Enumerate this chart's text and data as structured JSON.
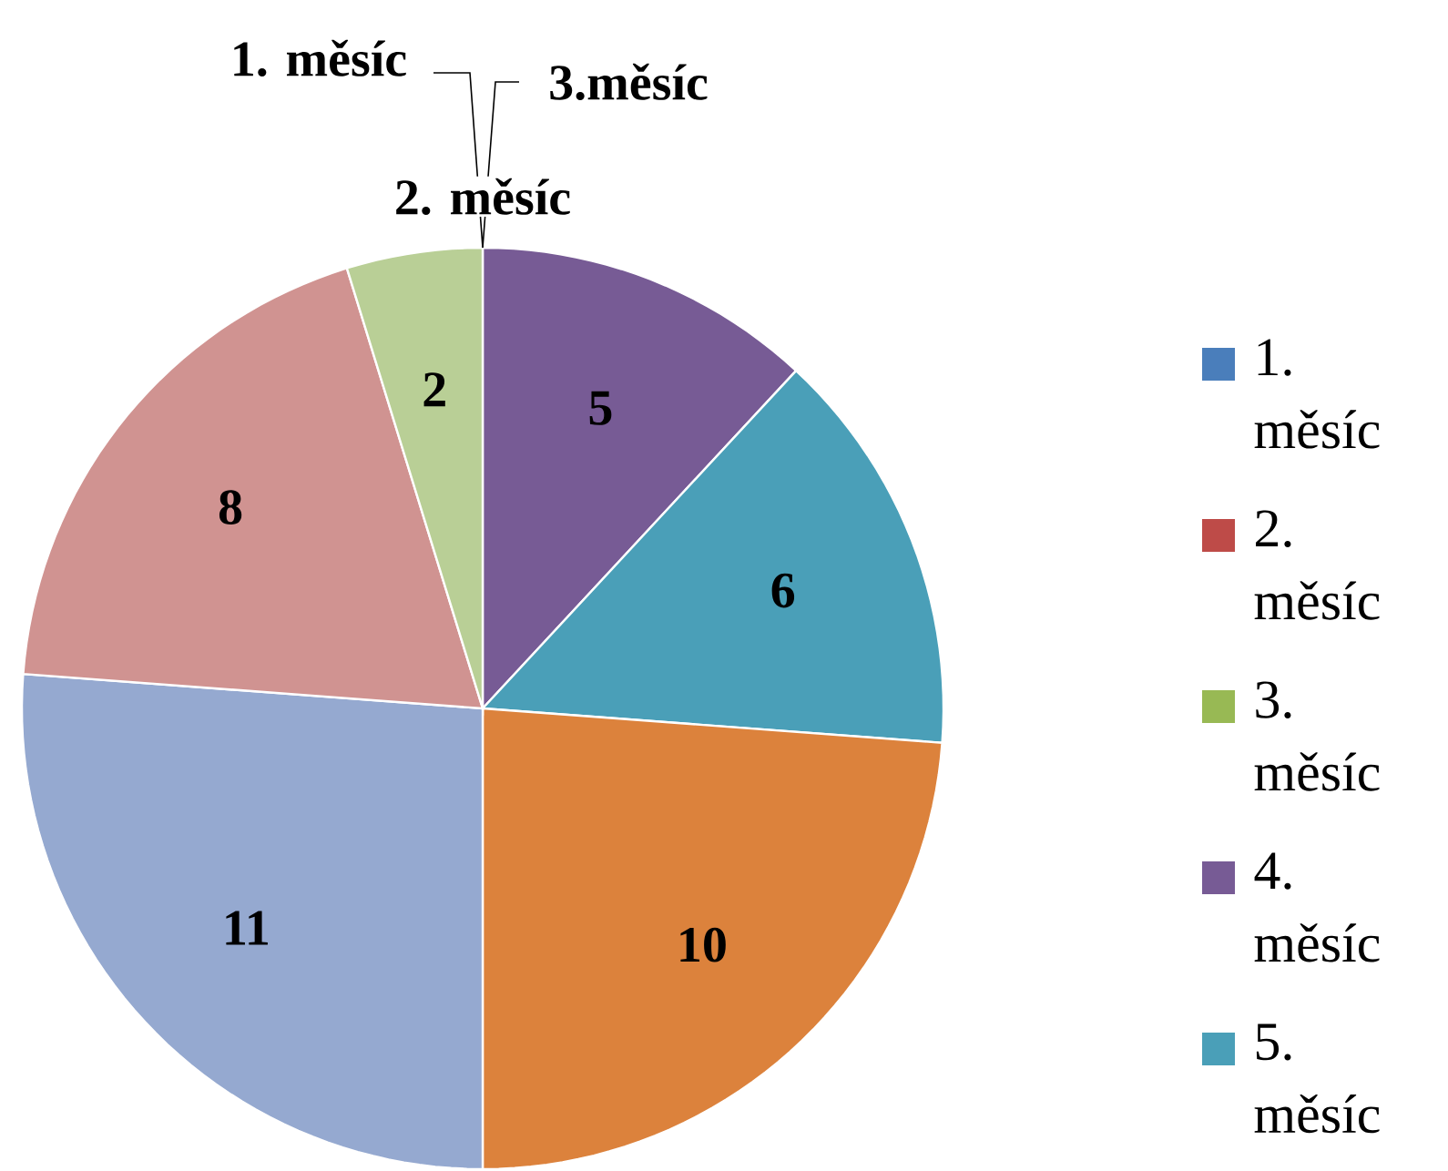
{
  "chart_data": {
    "type": "pie",
    "categories": [
      "1. měsíc",
      "2. měsíc",
      "3. měsíc",
      "4. měsíc",
      "5. měsíc",
      null,
      null,
      null,
      null
    ],
    "values": [
      0,
      0,
      0,
      5,
      6,
      10,
      11,
      8,
      2
    ],
    "colors": [
      "#4a7ebb",
      "#be4b48",
      "#98b954",
      "#775b95",
      "#4a9fb8",
      "#dc823c",
      "#95a9d0",
      "#d09391",
      "#b9cf96"
    ],
    "value_labels": [
      null,
      null,
      null,
      "5",
      "6",
      "10",
      "11",
      "8",
      "2"
    ],
    "annotations": [
      "1. měsíc",
      "3.měsíc",
      "2. měsíc"
    ],
    "legend": "right"
  }
}
